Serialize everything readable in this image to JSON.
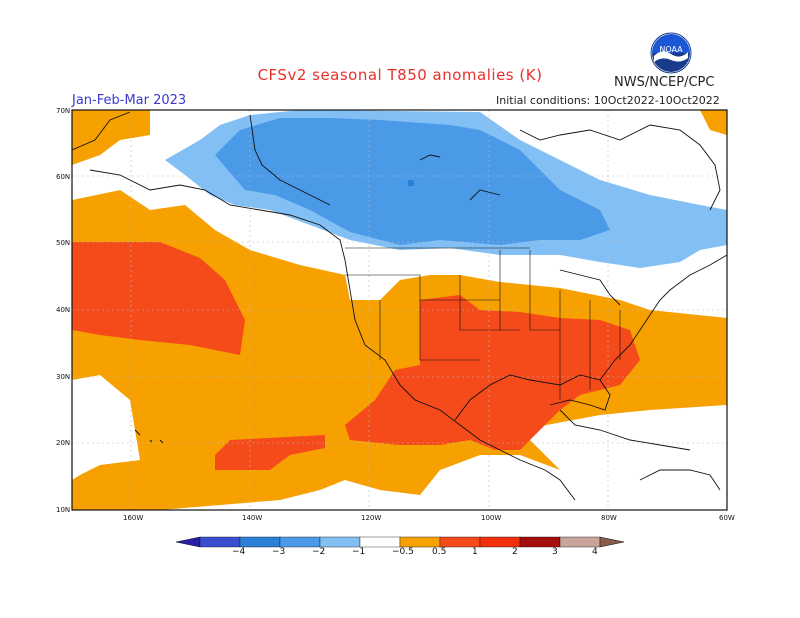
{
  "title": "CFSv2 seasonal T850 anomalies (K)",
  "agency": "NWS/NCEP/CPC",
  "period": "Jan-Feb-Mar 2023",
  "initial_conditions": "Initial conditions: 10Oct2022-10Oct2022",
  "logo_text": "NOAA",
  "lat_labels": [
    "70N",
    "60N",
    "50N",
    "40N",
    "30N",
    "20N",
    "10N"
  ],
  "lon_labels": [
    "160W",
    "140W",
    "120W",
    "100W",
    "80W",
    "60W"
  ],
  "colorbar": {
    "labels": [
      "−4",
      "−3",
      "−2",
      "−1",
      "−0.5",
      "0.5",
      "1",
      "2",
      "3",
      "4"
    ],
    "colors": [
      "#2a1fa5",
      "#3a4fd0",
      "#2b7fd6",
      "#4a9ae8",
      "#82bff5",
      "#ffffff",
      "#f7a100",
      "#f54a1a",
      "#f0300c",
      "#a50c0c",
      "#c8a49a",
      "#8b5a4a"
    ]
  },
  "colors": {
    "pos_0_5_1": "#f7a100",
    "pos_1_2": "#f54a1a",
    "neg_0_5_1": "#82bff5",
    "neg_1_2": "#4a9ae8",
    "neg_2_3": "#2b7fd6"
  }
}
